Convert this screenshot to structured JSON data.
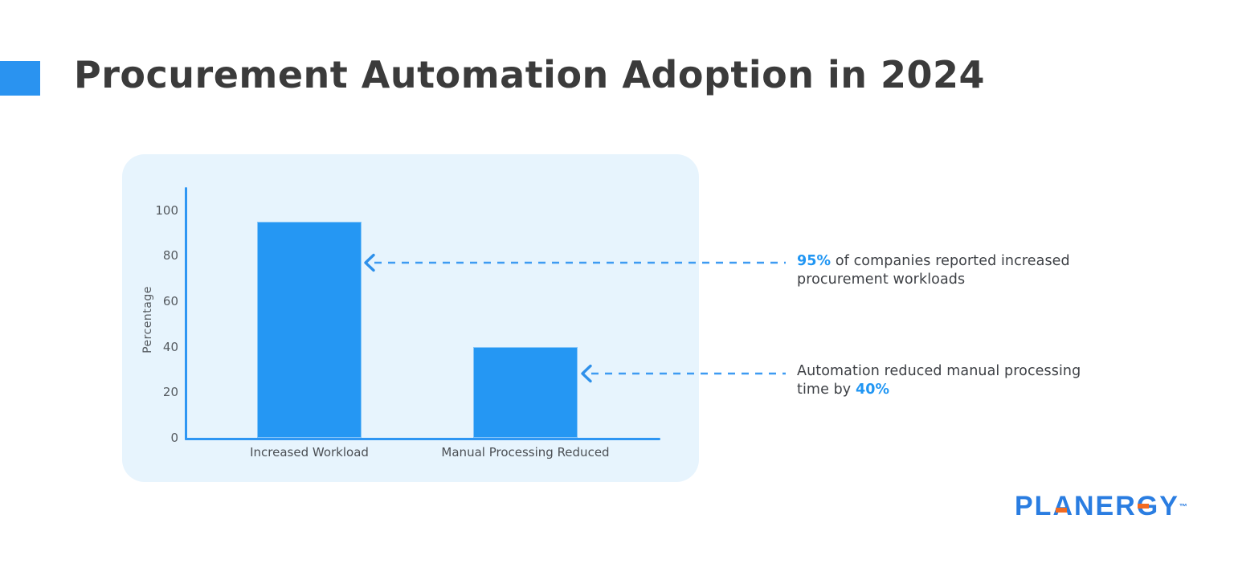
{
  "colors": {
    "accent": "#2a93f0",
    "accent-text": "#2196f3",
    "panel-bg": "#e7f4fd",
    "axis": "#2e96f3",
    "bar": "#2597f3",
    "arrow": "#3e9bf2",
    "logo-blue": "#2a7de1",
    "logo-orange": "#f26b21"
  },
  "header": {
    "title": "Procurement Automation Adoption in 2024"
  },
  "chart_data": {
    "type": "bar",
    "title": "",
    "categories": [
      "Increased Workload",
      "Manual Processing Reduced"
    ],
    "values": [
      95,
      40
    ],
    "xlabel": "",
    "ylabel": "Percentage",
    "yticks": [
      0,
      20,
      40,
      60,
      80,
      100
    ],
    "ylim": [
      0,
      110
    ],
    "grid": false,
    "legend": "none",
    "bar_color": "#2597f3",
    "panel_background": "#e7f4fd"
  },
  "annotations": [
    {
      "parts": [
        {
          "text": "95%",
          "accent": true
        },
        {
          "text": " of companies reported increased procurement workloads",
          "accent": false
        }
      ]
    },
    {
      "parts": [
        {
          "text": "Automation reduced manual processing time by ",
          "accent": false
        },
        {
          "text": "40%",
          "accent": true
        }
      ]
    }
  ],
  "logo": {
    "text": "PLANERGY",
    "tm": "™"
  }
}
